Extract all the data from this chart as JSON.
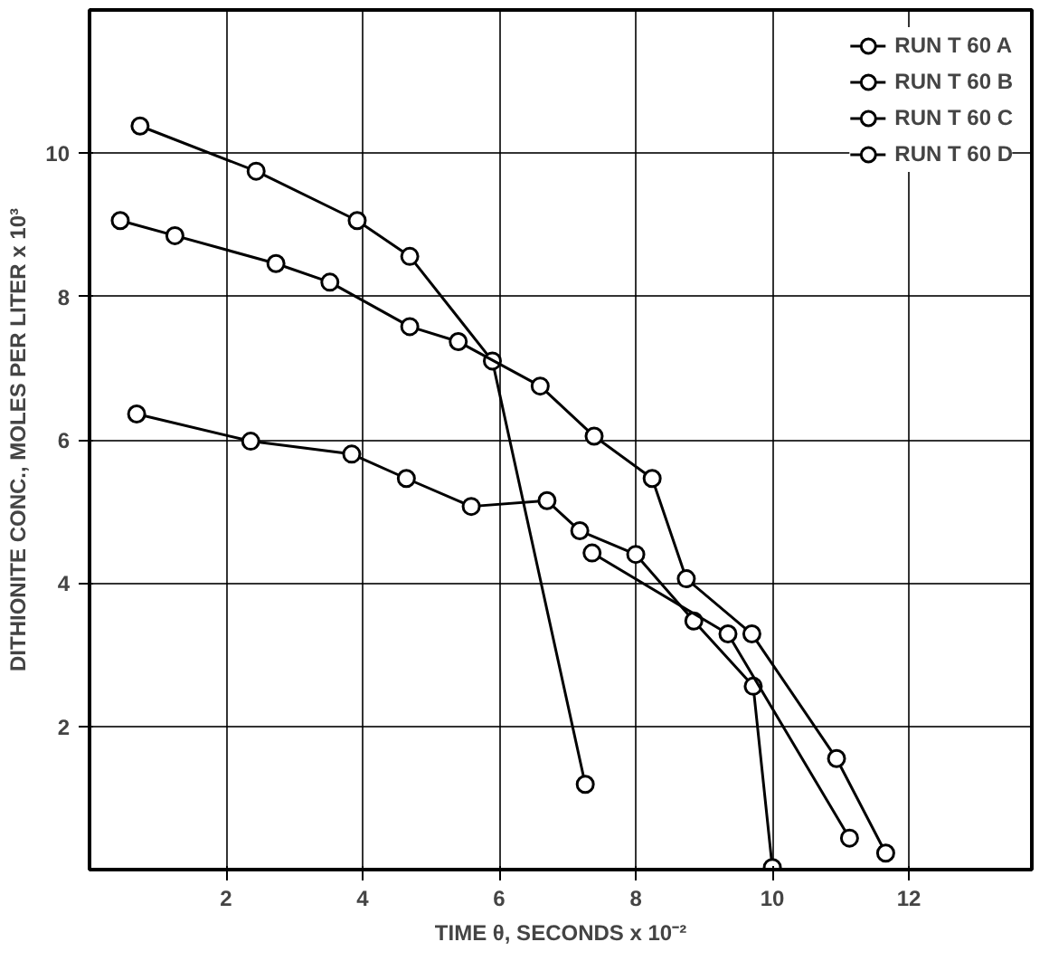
{
  "chart_data": {
    "type": "line",
    "xlabel": "TIME θ, SECONDS x 10⁻²",
    "ylabel": "DITHIONITE CONC., MOLES PER LITER x 10³",
    "xlim": [
      0,
      13.8
    ],
    "ylim": [
      0,
      12
    ],
    "xticks": [
      2,
      4,
      6,
      8,
      10,
      12
    ],
    "yticks": [
      2,
      4,
      6,
      8,
      10
    ],
    "grid": true,
    "legend": "top right",
    "marker": "circle",
    "line_style": "solid",
    "series": [
      {
        "name": "RUN T 60 A",
        "color": "#000000",
        "x": [
          0.74,
          2.44,
          3.92,
          4.69,
          5.9,
          7.26
        ],
        "values": [
          10.38,
          9.75,
          9.06,
          8.56,
          7.1,
          1.19
        ]
      },
      {
        "name": "RUN T 60 B",
        "color": "#000000",
        "x": [
          0.45,
          1.25,
          2.73,
          3.52,
          4.69,
          5.4,
          6.6,
          7.39,
          8.24,
          8.74,
          9.7,
          10.94,
          11.66
        ],
        "values": [
          9.06,
          8.85,
          8.46,
          8.2,
          7.58,
          7.37,
          6.75,
          6.05,
          5.46,
          4.06,
          3.29,
          1.55,
          0.23
        ]
      },
      {
        "name": "RUN T 60 C",
        "color": "#000000",
        "x": [
          0.69,
          2.36,
          3.84,
          4.64,
          5.59,
          6.7,
          7.18,
          8.0,
          8.85,
          9.72,
          10.0
        ],
        "values": [
          6.36,
          5.98,
          5.8,
          5.46,
          5.07,
          5.15,
          4.73,
          4.4,
          3.47,
          2.56,
          0.03
        ]
      },
      {
        "name": "RUN T 60 D",
        "color": "#000000",
        "x": [
          7.36,
          9.35,
          11.13
        ],
        "values": [
          4.42,
          3.29,
          0.44
        ]
      }
    ]
  }
}
